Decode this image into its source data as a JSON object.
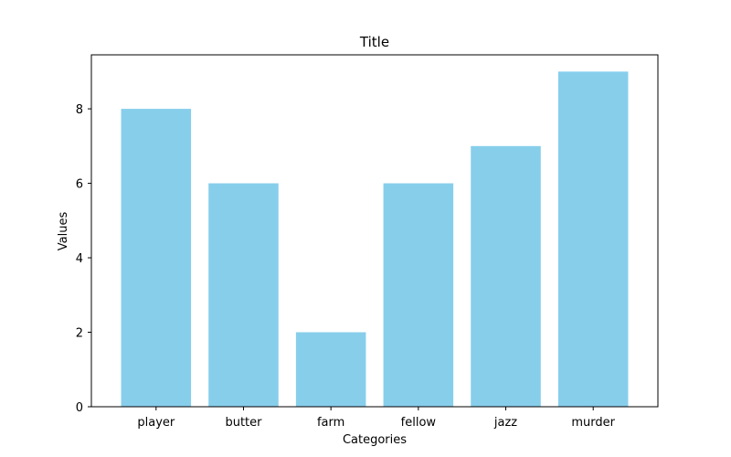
{
  "chart_data": {
    "type": "bar",
    "title": "Title",
    "xlabel": "Categories",
    "ylabel": "Values",
    "categories": [
      "player",
      "butter",
      "farm",
      "fellow",
      "jazz",
      "murder"
    ],
    "values": [
      8,
      6,
      2,
      6,
      7,
      9
    ],
    "ylim": [
      0,
      9.45
    ],
    "yticks": [
      0,
      2,
      4,
      6,
      8
    ],
    "bar_color": "#87ceeb",
    "grid": false,
    "legend": null
  }
}
